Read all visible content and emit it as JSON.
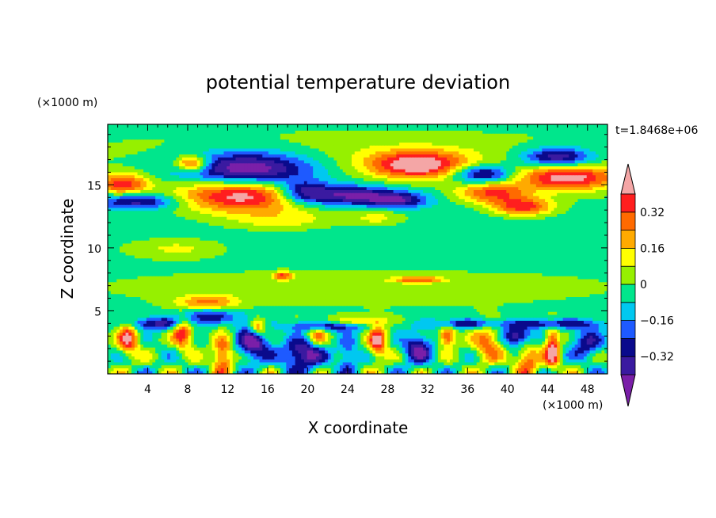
{
  "chart_data": {
    "type": "heatmap",
    "title": "potential temperature deviation",
    "xlabel": "X coordinate",
    "ylabel": "Z coordinate",
    "x_unit": "(×1000 m)",
    "y_unit": "(×1000 m)",
    "time_label": "t=1.8468e+06",
    "xlim": [
      0,
      50
    ],
    "ylim": [
      0,
      19.8
    ],
    "x_ticks": [
      4,
      8,
      12,
      16,
      20,
      24,
      28,
      32,
      36,
      40,
      44,
      48
    ],
    "y_ticks": [
      5,
      10,
      15
    ],
    "colorbar": {
      "levels": [
        -0.4,
        -0.32,
        -0.24,
        -0.16,
        -0.08,
        0,
        0.08,
        0.16,
        0.24,
        0.32,
        0.4
      ],
      "labels": [
        "0.32",
        "0.16",
        "0",
        "−0.16",
        "−0.32"
      ],
      "label_values": [
        0.32,
        0.16,
        0,
        -0.16,
        -0.32
      ],
      "colors": [
        "#7a1fa8",
        "#3a1aa0",
        "#0a0a8c",
        "#1e5aff",
        "#00c8f0",
        "#00e68c",
        "#96f000",
        "#ffff00",
        "#ffaa00",
        "#ff6a00",
        "#ff1e1e",
        "#f4a6a6"
      ]
    },
    "field": {
      "background": -0.02,
      "features": [
        {
          "x": 25,
          "z": 17.6,
          "rx": 25,
          "rz": 1.6,
          "v": 0.07
        },
        {
          "x": 25,
          "z": 11,
          "rx": 25,
          "rz": 2.4,
          "v": -0.05
        },
        {
          "x": 25,
          "z": 7,
          "rx": 25,
          "rz": 1.6,
          "v": 0.06
        },
        {
          "x": 14,
          "z": 16.3,
          "rx": 6.5,
          "rz": 1.4,
          "v": -0.5
        },
        {
          "x": 13.5,
          "z": 14.2,
          "rx": 6.5,
          "rz": 1.3,
          "v": 0.5
        },
        {
          "x": 24,
          "z": 14.2,
          "rx": 5,
          "rz": 0.8,
          "v": -0.4
        },
        {
          "x": 31,
          "z": 16.6,
          "rx": 5,
          "rz": 1.1,
          "v": 0.5
        },
        {
          "x": 37.5,
          "z": 15.9,
          "rx": 3,
          "rz": 0.7,
          "v": -0.4
        },
        {
          "x": 45,
          "z": 17.2,
          "rx": 3.5,
          "rz": 0.8,
          "v": -0.4
        },
        {
          "x": 46,
          "z": 15.6,
          "rx": 5,
          "rz": 1,
          "v": 0.48
        },
        {
          "x": 38.5,
          "z": 14.4,
          "rx": 3.5,
          "rz": 0.8,
          "v": 0.35
        },
        {
          "x": 41.5,
          "z": 13.3,
          "rx": 3,
          "rz": 0.7,
          "v": 0.4
        },
        {
          "x": 1.5,
          "z": 15.1,
          "rx": 2.5,
          "rz": 0.8,
          "v": 0.4
        },
        {
          "x": 3,
          "z": 13.7,
          "rx": 4,
          "rz": 0.6,
          "v": -0.35
        },
        {
          "x": 8.5,
          "z": 16.7,
          "rx": 1.6,
          "rz": 0.6,
          "v": 0.45
        },
        {
          "x": 19.5,
          "z": 14.5,
          "rx": 2.5,
          "rz": 0.9,
          "v": -0.32
        },
        {
          "x": 29,
          "z": 13.8,
          "rx": 3,
          "rz": 0.6,
          "v": -0.3
        },
        {
          "x": 17.5,
          "z": 12.2,
          "rx": 6,
          "rz": 0.9,
          "v": 0.16
        },
        {
          "x": 27,
          "z": 12.4,
          "rx": 3,
          "rz": 0.7,
          "v": 0.15
        },
        {
          "x": 7,
          "z": 10,
          "rx": 5,
          "rz": 0.8,
          "v": 0.14
        },
        {
          "x": 17.5,
          "z": 7.8,
          "rx": 1,
          "rz": 0.3,
          "v": 0.35
        },
        {
          "x": 31,
          "z": 7.5,
          "rx": 2.5,
          "rz": 0.25,
          "v": 0.32
        },
        {
          "x": 10,
          "z": 5.7,
          "rx": 3,
          "rz": 0.6,
          "v": 0.28
        },
        {
          "x": 10,
          "z": 4.6,
          "rx": 3,
          "rz": 0.6,
          "v": -0.3
        },
        {
          "x": 25,
          "z": 4.2,
          "rx": 3,
          "rz": 0.4,
          "v": 0.2
        },
        {
          "x": 2,
          "z": 2.8,
          "rx": 1,
          "rz": 1.2,
          "v": 0.45
        },
        {
          "x": 7.5,
          "z": 3.3,
          "rx": 1,
          "rz": 1.2,
          "v": 0.42
        },
        {
          "x": 14.5,
          "z": 2.5,
          "rx": 1.5,
          "rz": 1.4,
          "v": -0.45
        },
        {
          "x": 15,
          "z": 3.7,
          "rx": 0.8,
          "rz": 0.7,
          "v": 0.4
        },
        {
          "x": 19.5,
          "z": 1.6,
          "rx": 2,
          "rz": 1.2,
          "v": -0.45
        },
        {
          "x": 21,
          "z": 3,
          "rx": 1,
          "rz": 0.8,
          "v": 0.3
        },
        {
          "x": 27,
          "z": 2.6,
          "rx": 0.9,
          "rz": 1.3,
          "v": 0.45
        },
        {
          "x": 31,
          "z": 2,
          "rx": 1.5,
          "rz": 1.2,
          "v": -0.35
        },
        {
          "x": 34,
          "z": 3,
          "rx": 0.8,
          "rz": 0.8,
          "v": 0.42
        },
        {
          "x": 38,
          "z": 2.5,
          "rx": 1.5,
          "rz": 1.5,
          "v": 0.3
        },
        {
          "x": 41,
          "z": 3,
          "rx": 1.5,
          "rz": 0.8,
          "v": -0.4
        },
        {
          "x": 44.5,
          "z": 2,
          "rx": 0.7,
          "rz": 1.6,
          "v": 0.48
        },
        {
          "x": 48,
          "z": 2.5,
          "rx": 1.5,
          "rz": 1.2,
          "v": -0.3
        },
        {
          "x": 5,
          "z": 4,
          "rx": 3,
          "rz": 0.5,
          "v": -0.32
        },
        {
          "x": 22,
          "z": 3.8,
          "rx": 4,
          "rz": 0.4,
          "v": -0.3
        },
        {
          "x": 36,
          "z": 4,
          "rx": 4,
          "rz": 0.4,
          "v": -0.3
        },
        {
          "x": 45,
          "z": 4,
          "rx": 4,
          "rz": 0.4,
          "v": -0.3
        },
        {
          "x": 11.5,
          "z": 1.5,
          "rx": 1,
          "rz": 1.5,
          "v": 0.38
        },
        {
          "x": 24,
          "z": 1.5,
          "rx": 1,
          "rz": 1.4,
          "v": -0.25
        },
        {
          "x": 42,
          "z": 1.2,
          "rx": 1.2,
          "rz": 1.2,
          "v": 0.35
        }
      ]
    }
  }
}
